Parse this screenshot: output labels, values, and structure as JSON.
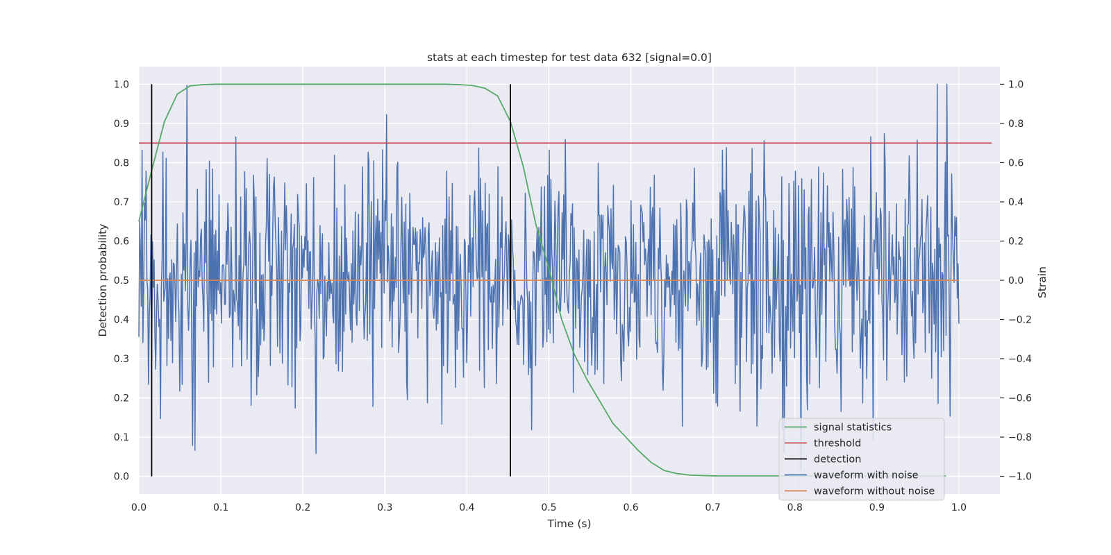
{
  "chart_data": {
    "type": "line",
    "title": "stats at each timestep for test data 632 [signal=0.0]",
    "xlabel": "Time (s)",
    "ylabel": "Detection probability",
    "y2label": "Strain",
    "xlim": [
      0.0,
      1.05
    ],
    "ylim": [
      -0.045,
      1.045
    ],
    "y2lim": [
      -1.09,
      1.09
    ],
    "grid": true,
    "background": "#eaeaf2",
    "x_ticks": [
      0.0,
      0.1,
      0.2,
      0.3,
      0.4,
      0.5,
      0.6,
      0.7,
      0.8,
      0.9,
      1.0
    ],
    "x_tick_labels": [
      "0.0",
      "0.1",
      "0.2",
      "0.3",
      "0.4",
      "0.5",
      "0.6",
      "0.7",
      "0.8",
      "0.9",
      "1.0"
    ],
    "y_ticks": [
      0.0,
      0.1,
      0.2,
      0.3,
      0.4,
      0.5,
      0.6,
      0.7,
      0.8,
      0.9,
      1.0
    ],
    "y_tick_labels": [
      "0.0",
      "0.1",
      "0.2",
      "0.3",
      "0.4",
      "0.5",
      "0.6",
      "0.7",
      "0.8",
      "0.9",
      "1.0"
    ],
    "y2_ticks": [
      -1.0,
      -0.8,
      -0.6,
      -0.4,
      -0.2,
      0.0,
      0.2,
      0.4,
      0.6,
      0.8,
      1.0
    ],
    "y2_tick_labels": [
      "−1.0",
      "−0.8",
      "−0.6",
      "−0.4",
      "−0.2",
      "0.0",
      "0.2",
      "0.4",
      "0.6",
      "0.8",
      "1.0"
    ],
    "legend_position": "lower-right",
    "series": [
      {
        "name": "signal statistics",
        "color": "#55a868",
        "axis": "left",
        "x": [
          0.0,
          0.0156,
          0.0312,
          0.0469,
          0.0625,
          0.0781,
          0.0938,
          0.1094,
          0.125,
          0.1406,
          0.1562,
          0.1719,
          0.1875,
          0.2031,
          0.2188,
          0.2344,
          0.25,
          0.2656,
          0.2812,
          0.2969,
          0.3125,
          0.3281,
          0.3438,
          0.3594,
          0.375,
          0.3906,
          0.4062,
          0.4219,
          0.4375,
          0.4531,
          0.4688,
          0.4844,
          0.5,
          0.5156,
          0.5312,
          0.5469,
          0.5625,
          0.5781,
          0.5938,
          0.6094,
          0.625,
          0.6406,
          0.6562,
          0.6719,
          0.6875,
          0.7031,
          0.7188,
          0.7344,
          0.75,
          0.7656,
          0.7812,
          0.7969,
          0.8125,
          0.8281,
          0.8438,
          0.8594,
          0.875,
          0.8906,
          0.9062,
          0.9219,
          0.9375,
          0.9531,
          0.9688,
          0.9844
        ],
        "y": [
          0.65,
          0.78,
          0.905,
          0.975,
          0.996,
          0.999,
          1.0,
          1.0,
          1.0,
          1.0,
          1.0,
          1.0,
          1.0,
          1.0,
          1.0,
          1.0,
          1.0,
          1.0,
          1.0,
          1.0,
          1.0,
          1.0,
          1.0,
          1.0,
          1.0,
          0.999,
          0.997,
          0.99,
          0.97,
          0.905,
          0.79,
          0.64,
          0.53,
          0.4,
          0.31,
          0.245,
          0.19,
          0.135,
          0.1,
          0.065,
          0.035,
          0.015,
          0.007,
          0.003,
          0.002,
          0.001,
          0.001,
          0.001,
          0.001,
          0.001,
          0.001,
          0.001,
          0.001,
          0.001,
          0.001,
          0.001,
          0.001,
          0.001,
          0.001,
          0.001,
          0.001,
          0.001,
          0.001,
          0.001
        ]
      },
      {
        "name": "threshold",
        "color": "#c44e52",
        "axis": "left",
        "x": [
          0.0,
          1.04
        ],
        "y": [
          0.85,
          0.85
        ]
      },
      {
        "name": "detection",
        "color": "#000000",
        "axis": "left",
        "vlines": [
          0.0156,
          0.4531
        ],
        "ymin": 0.0,
        "ymax": 1.0
      },
      {
        "name": "waveform with noise",
        "color": "#4c72b0",
        "axis": "right",
        "x_range": [
          0.0,
          1.0
        ],
        "n_points": 1024,
        "noise_std": 0.3,
        "y_clip": [
          -1.0,
          1.0
        ]
      },
      {
        "name": "waveform without noise",
        "color": "#dd8452",
        "axis": "right",
        "x": [
          0.0,
          1.0
        ],
        "y": [
          0.0,
          0.0
        ]
      }
    ]
  }
}
